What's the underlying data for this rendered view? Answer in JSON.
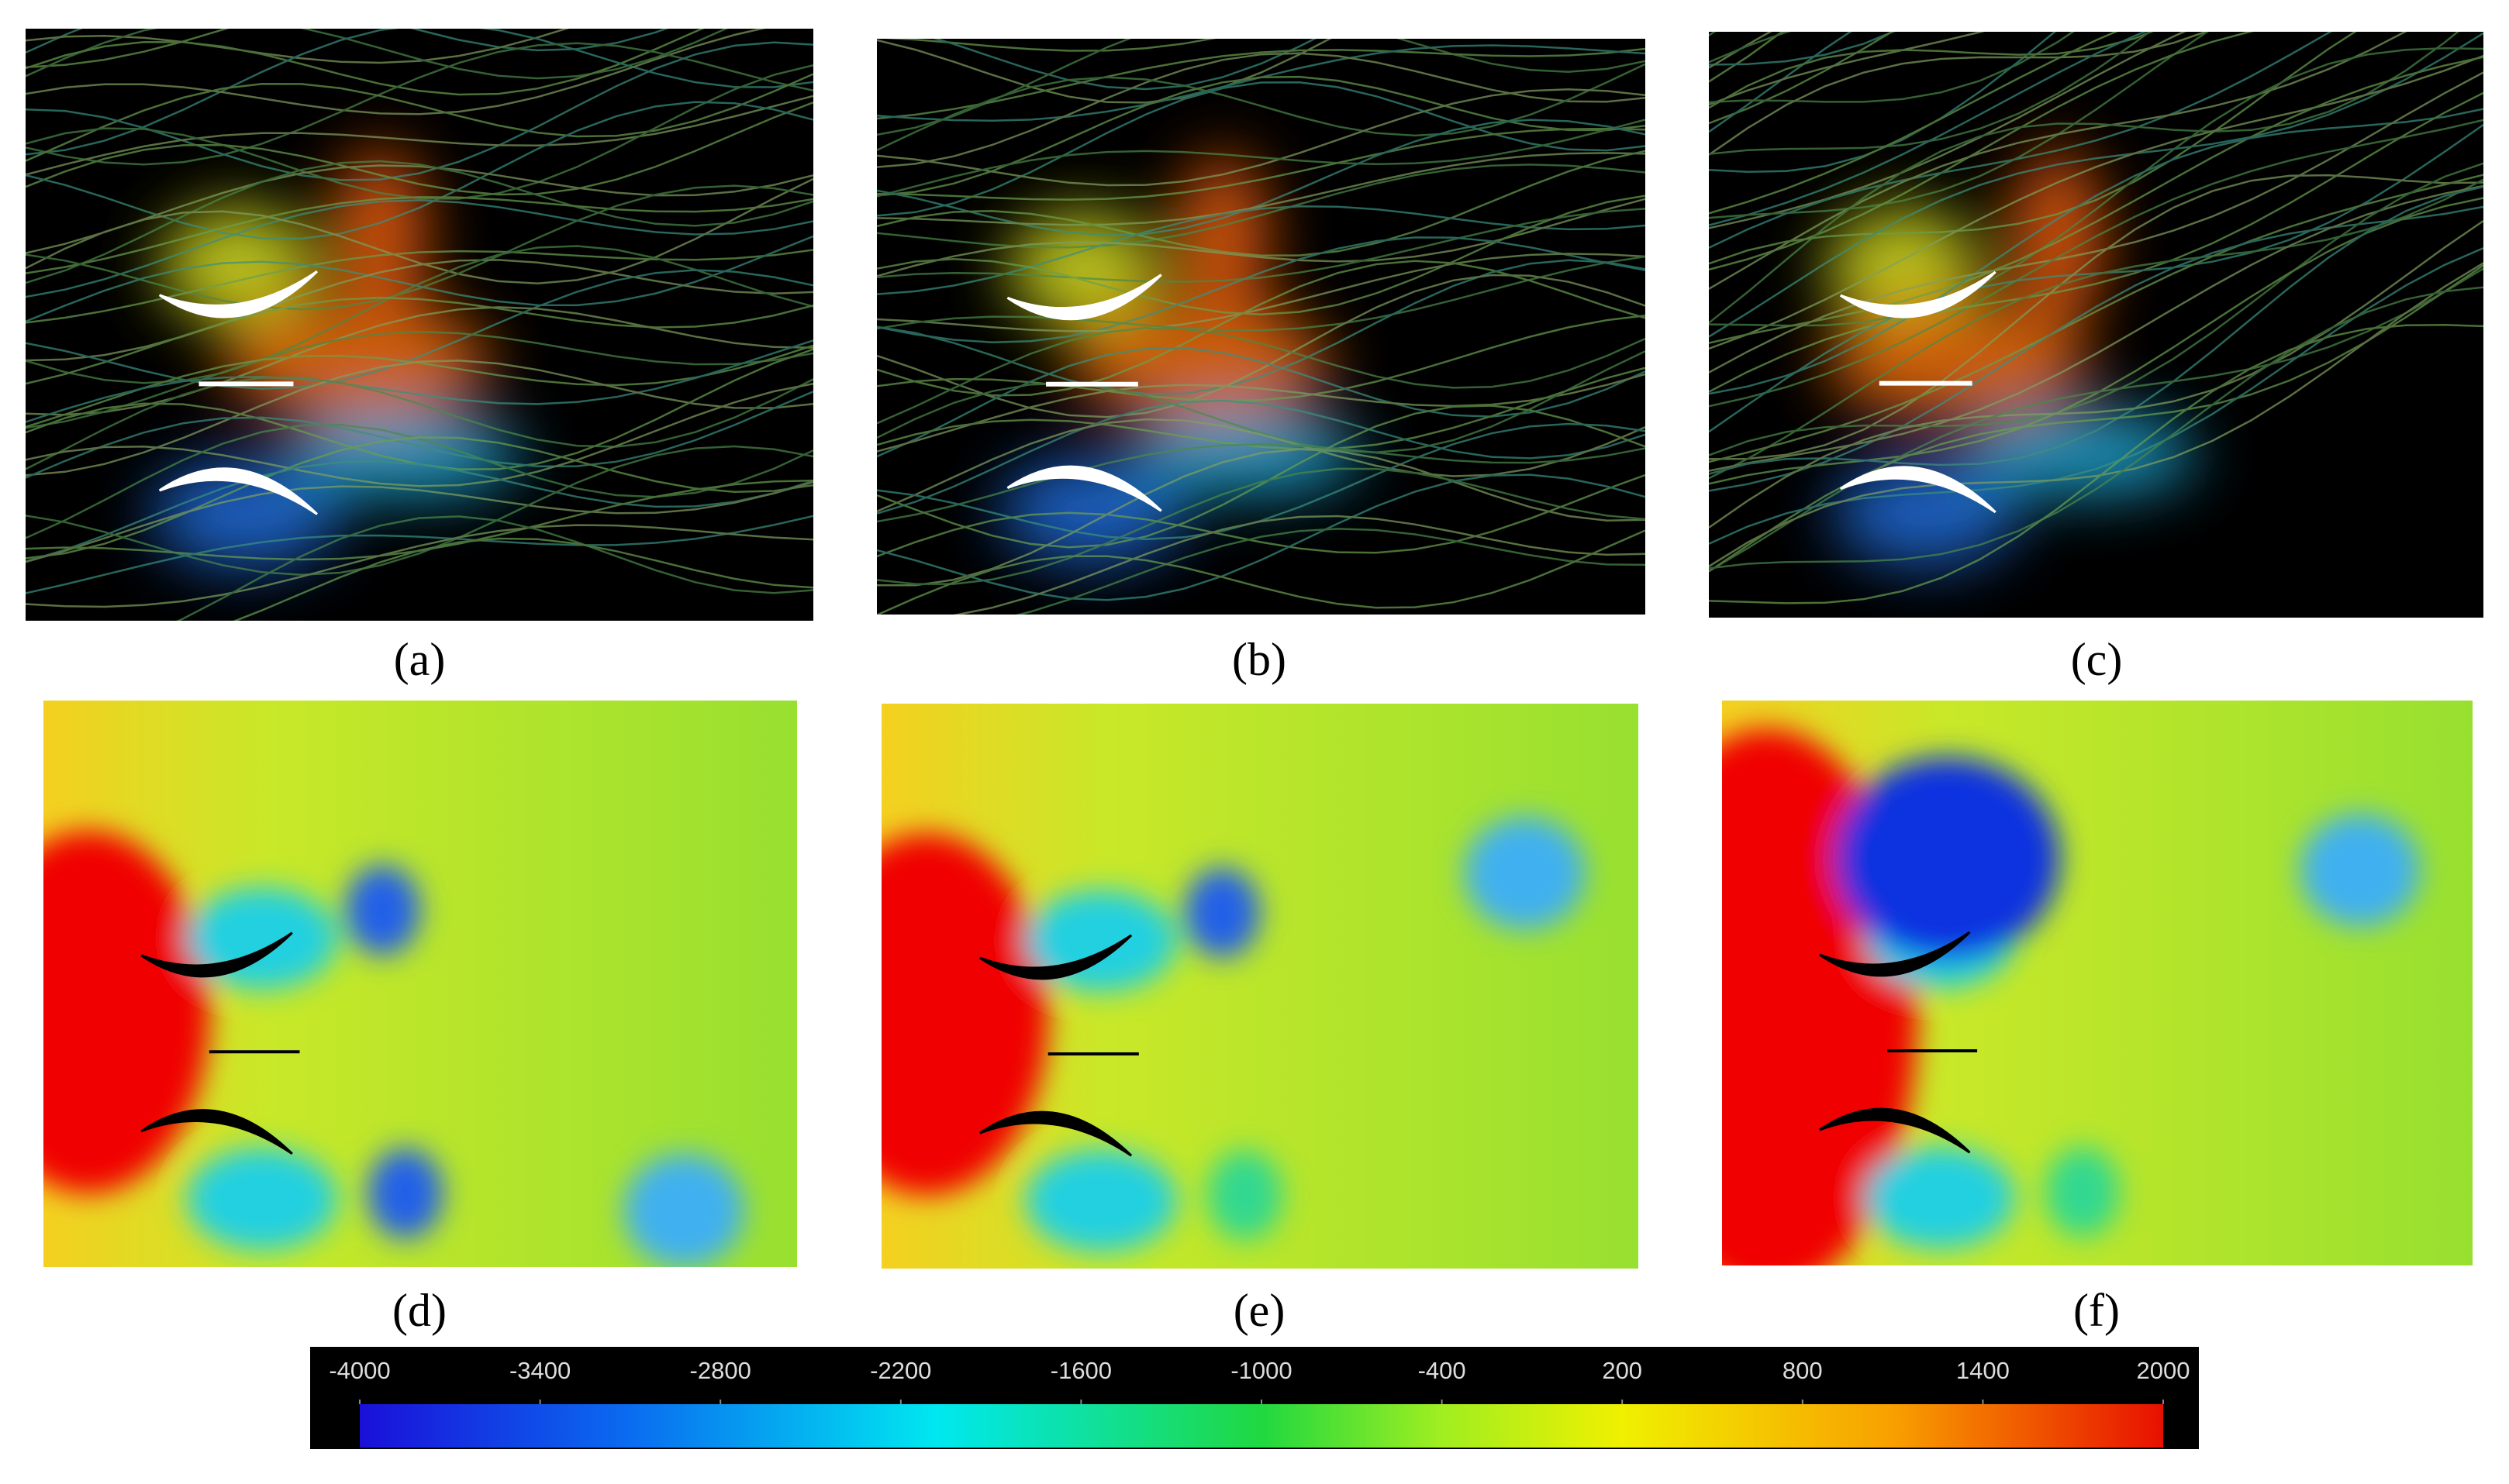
{
  "panels": {
    "labels": [
      "(a)",
      "(b)",
      "(c)",
      "(d)",
      "(e)",
      "(f)"
    ]
  },
  "colorbar": {
    "range": [
      -4000,
      2000
    ],
    "ticks": [
      -4000,
      -3400,
      -2800,
      -2200,
      -1600,
      -1000,
      -400,
      200,
      800,
      1400,
      2000
    ]
  }
}
